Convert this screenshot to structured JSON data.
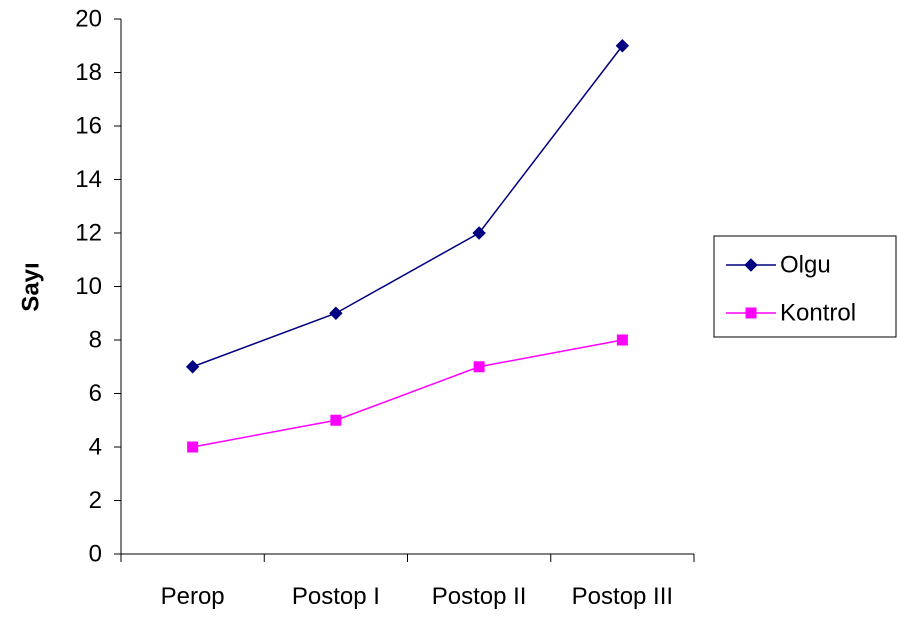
{
  "chart_data": {
    "type": "line",
    "title": "",
    "xlabel": "",
    "ylabel": "Sayı",
    "categories": [
      "Perop",
      "Postop I",
      "Postop II",
      "Postop III"
    ],
    "ylim": [
      0,
      20
    ],
    "yticks": [
      0,
      2,
      4,
      6,
      8,
      10,
      12,
      14,
      16,
      18,
      20
    ],
    "grid": false,
    "legend_position": "right",
    "series": [
      {
        "name": "Olgu",
        "values": [
          7,
          9,
          12,
          19
        ],
        "color": "#000080",
        "marker": "diamond"
      },
      {
        "name": "Kontrol",
        "values": [
          4,
          5,
          7,
          8
        ],
        "color": "#ff00ff",
        "marker": "square"
      }
    ]
  }
}
